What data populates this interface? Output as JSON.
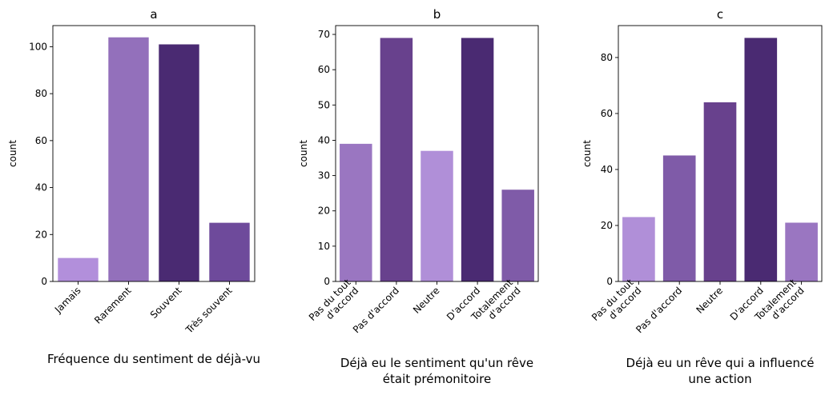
{
  "chart_data": [
    {
      "type": "bar",
      "title": "a",
      "xlabel": [
        "Fréquence du sentiment de déjà-vu"
      ],
      "ylabel": "count",
      "ylim": [
        0,
        109
      ],
      "yticks": [
        0,
        20,
        40,
        60,
        80,
        100
      ],
      "categories": [
        [
          "Jamais"
        ],
        [
          "Rarement"
        ],
        [
          "Souvent"
        ],
        [
          "Très souvent"
        ]
      ],
      "values": [
        10,
        104,
        101,
        25
      ],
      "colors": [
        "#b28fdb",
        "#9370bb",
        "#4a2a72",
        "#6e4a9b"
      ]
    },
    {
      "type": "bar",
      "title": "b",
      "xlabel": [
        "Déjà eu le sentiment qu'un rêve",
        "était prémonitoire"
      ],
      "ylabel": "count",
      "ylim": [
        0,
        72.5
      ],
      "yticks": [
        0,
        10,
        20,
        30,
        40,
        50,
        60,
        70
      ],
      "categories": [
        [
          "Pas du tout",
          "d'accord"
        ],
        [
          "Pas d'accord"
        ],
        [
          "Neutre"
        ],
        [
          "D'accord"
        ],
        [
          "Totalement",
          "d'accord"
        ]
      ],
      "values": [
        39,
        69,
        37,
        69,
        26
      ],
      "colors": [
        "#9a76c1",
        "#68418d",
        "#b08fd8",
        "#4a2a72",
        "#7f5ba8"
      ]
    },
    {
      "type": "bar",
      "title": "c",
      "xlabel": [
        "Déjà eu un rêve qui a influencé",
        "une action"
      ],
      "ylabel": "count",
      "ylim": [
        0,
        91.4
      ],
      "yticks": [
        0,
        20,
        40,
        60,
        80
      ],
      "categories": [
        [
          "Pas du tout",
          "d'accord"
        ],
        [
          "Pas d'accord"
        ],
        [
          "Neutre"
        ],
        [
          "D'accord"
        ],
        [
          "Totalement",
          "d'accord"
        ]
      ],
      "values": [
        23,
        45,
        64,
        87,
        21
      ],
      "colors": [
        "#b08fd8",
        "#7f5ba8",
        "#68418d",
        "#4a2a72",
        "#9a76c1"
      ]
    }
  ]
}
